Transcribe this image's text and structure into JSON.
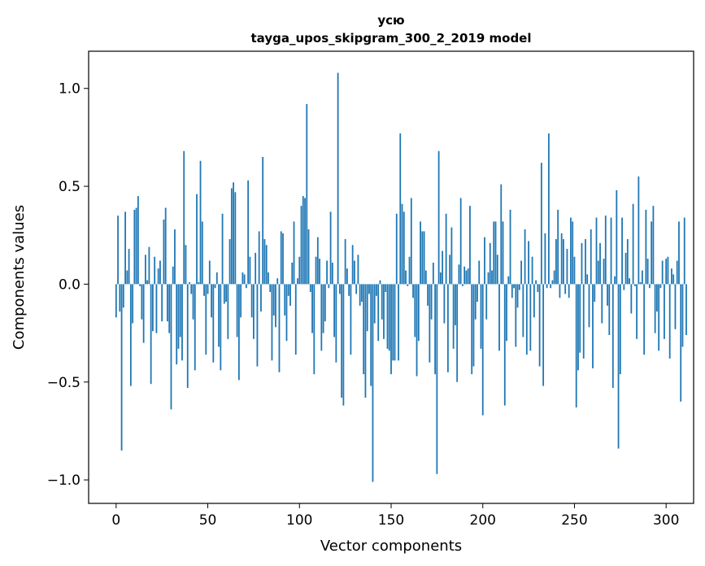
{
  "chart_data": {
    "type": "bar",
    "title_line1": "усю",
    "title_line2": "tayga_upos_skipgram_300_2_2019 model",
    "xlabel": "Vector components",
    "ylabel": "Components values",
    "xlim": [
      -15,
      315
    ],
    "ylim": [
      -1.12,
      1.19
    ],
    "xticks": [
      0,
      50,
      100,
      150,
      200,
      250,
      300
    ],
    "yticks": [
      -1.0,
      -0.5,
      0.0,
      0.5,
      1.0
    ],
    "ytick_labels": [
      "−1.0",
      "−0.5",
      "0.0",
      "0.5",
      "1.0"
    ],
    "bar_color": "#1f77b4",
    "values": [
      -0.17,
      0.35,
      -0.14,
      -0.85,
      -0.12,
      0.37,
      0.07,
      0.18,
      -0.52,
      -0.2,
      0.38,
      0.39,
      0.45,
      -0.01,
      -0.18,
      -0.3,
      0.15,
      0.02,
      0.19,
      -0.51,
      -0.24,
      0.14,
      -0.25,
      0.08,
      0.12,
      -0.19,
      0.33,
      0.39,
      -0.19,
      -0.25,
      -0.64,
      0.09,
      0.28,
      -0.41,
      -0.33,
      -0.27,
      -0.39,
      0.68,
      0.2,
      -0.53,
      0.01,
      -0.05,
      -0.18,
      -0.44,
      0.46,
      0.01,
      0.63,
      0.32,
      -0.06,
      -0.36,
      -0.05,
      0.12,
      -0.17,
      -0.4,
      -0.02,
      0.06,
      -0.32,
      -0.44,
      0.36,
      -0.1,
      -0.09,
      -0.28,
      0.23,
      0.49,
      0.52,
      0.47,
      -0.27,
      -0.49,
      -0.17,
      0.06,
      0.05,
      -0.02,
      0.53,
      0.14,
      -0.17,
      -0.28,
      0.16,
      -0.42,
      0.27,
      -0.14,
      0.65,
      0.23,
      0.2,
      0.06,
      -0.04,
      -0.39,
      -0.16,
      -0.22,
      0.03,
      -0.45,
      0.27,
      0.26,
      -0.16,
      -0.29,
      -0.06,
      -0.11,
      0.11,
      0.32,
      -0.36,
      0.03,
      0.14,
      0.4,
      0.45,
      0.44,
      0.92,
      0.28,
      -0.04,
      -0.25,
      -0.46,
      0.14,
      0.24,
      0.13,
      -0.34,
      -0.25,
      -0.19,
      0.12,
      -0.02,
      0.37,
      0.11,
      -0.27,
      -0.4,
      1.08,
      -0.05,
      -0.58,
      -0.62,
      0.23,
      0.08,
      -0.06,
      -0.36,
      0.2,
      0.12,
      -0.05,
      0.15,
      -0.11,
      -0.09,
      -0.46,
      -0.58,
      -0.24,
      -0.05,
      -0.52,
      -1.01,
      -0.2,
      -0.06,
      -0.29,
      0.02,
      -0.18,
      -0.28,
      -0.04,
      -0.33,
      -0.34,
      -0.46,
      -0.39,
      -0.39,
      0.36,
      -0.39,
      0.77,
      0.41,
      0.37,
      0.07,
      -0.01,
      0.14,
      0.44,
      -0.07,
      -0.27,
      -0.47,
      -0.29,
      0.32,
      0.27,
      0.27,
      0.07,
      -0.11,
      -0.4,
      -0.18,
      0.11,
      -0.46,
      -0.97,
      0.68,
      0.06,
      0.17,
      -0.2,
      0.36,
      -0.45,
      0.15,
      0.29,
      -0.33,
      -0.21,
      -0.5,
      0.1,
      0.44,
      -0.01,
      0.09,
      0.07,
      0.08,
      0.4,
      -0.46,
      -0.42,
      -0.18,
      -0.09,
      0.12,
      -0.33,
      -0.67,
      0.24,
      -0.18,
      0.06,
      0.21,
      0.07,
      0.32,
      0.32,
      0.15,
      -0.34,
      0.51,
      0.32,
      -0.62,
      -0.29,
      0.04,
      0.38,
      -0.07,
      -0.02,
      -0.32,
      -0.12,
      -0.03,
      0.12,
      -0.27,
      0.28,
      -0.36,
      0.22,
      -0.34,
      0.14,
      -0.17,
      0.02,
      -0.04,
      -0.42,
      0.62,
      -0.52,
      0.26,
      -0.02,
      0.77,
      -0.02,
      0.02,
      0.07,
      0.23,
      0.38,
      -0.07,
      0.26,
      0.23,
      -0.05,
      0.18,
      -0.07,
      0.34,
      0.32,
      0.14,
      -0.63,
      -0.44,
      -0.35,
      0.21,
      -0.38,
      0.23,
      0.05,
      -0.22,
      0.28,
      -0.43,
      -0.09,
      0.34,
      0.12,
      0.21,
      -0.2,
      0.13,
      0.35,
      -0.11,
      -0.26,
      0.34,
      -0.53,
      0.04,
      0.48,
      -0.84,
      -0.46,
      0.34,
      -0.03,
      0.16,
      0.23,
      0.03,
      -0.15,
      0.41,
      -0.01,
      -0.28,
      0.55,
      0.01,
      0.07,
      -0.36,
      0.38,
      0.13,
      -0.02,
      0.32,
      0.4,
      -0.25,
      -0.14,
      -0.34,
      -0.02,
      0.12,
      -0.28,
      0.13,
      0.14,
      -0.38,
      0.08,
      0.05,
      -0.23,
      0.12,
      0.32,
      -0.6,
      -0.32,
      0.34,
      -0.26
    ]
  }
}
